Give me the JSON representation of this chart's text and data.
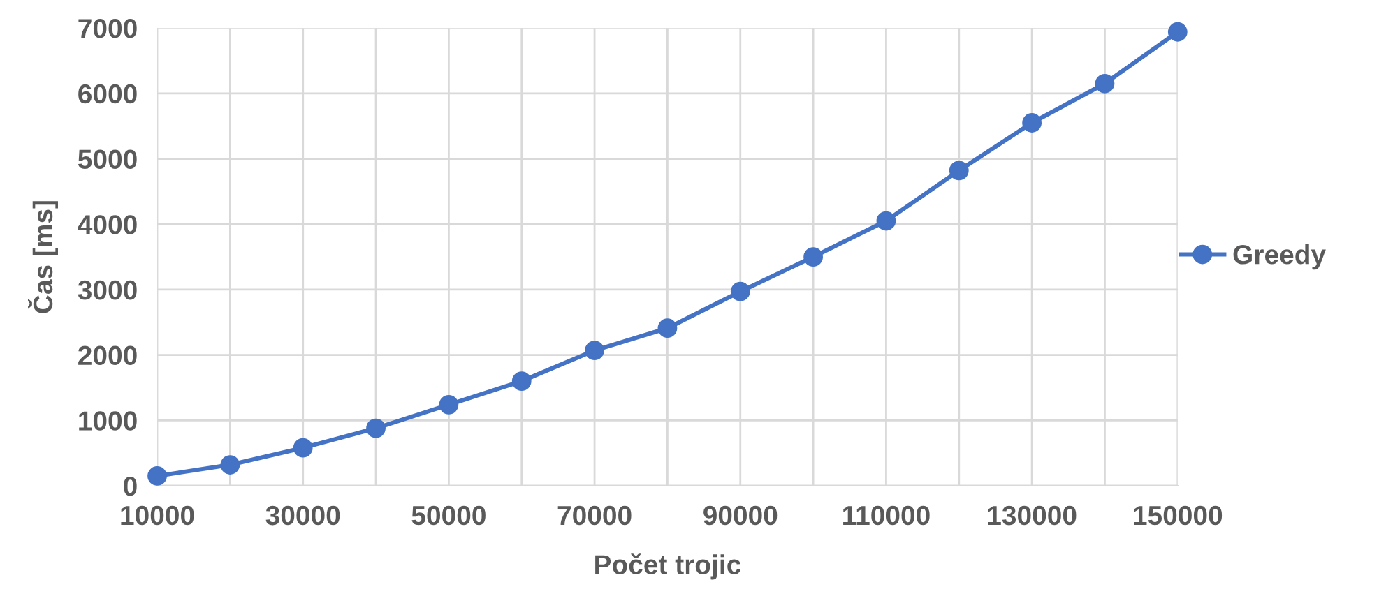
{
  "chart_data": {
    "type": "line",
    "xlabel": "Počet trojic",
    "ylabel": "Čas [ms]",
    "x": [
      10000,
      20000,
      30000,
      40000,
      50000,
      60000,
      70000,
      80000,
      90000,
      100000,
      110000,
      120000,
      130000,
      140000,
      150000
    ],
    "series": [
      {
        "name": "Greedy",
        "color": "#4472c4",
        "values": [
          150,
          320,
          580,
          880,
          1240,
          1600,
          2070,
          2410,
          2970,
          3500,
          4050,
          4820,
          5550,
          6150,
          6940
        ]
      }
    ],
    "xlim": [
      10000,
      150000
    ],
    "xticks": [
      10000,
      {
        "value": 20000,
        "label": null
      },
      30000,
      {
        "value": 40000,
        "label": null
      },
      50000,
      {
        "value": 60000,
        "label": null
      },
      70000,
      {
        "value": 80000,
        "label": null
      },
      90000,
      {
        "value": 100000,
        "label": null
      },
      110000,
      {
        "value": 120000,
        "label": null
      },
      130000,
      {
        "value": 140000,
        "label": null
      },
      150000
    ],
    "ylim": [
      0,
      7000
    ],
    "yticks": [
      0,
      1000,
      2000,
      3000,
      4000,
      5000,
      6000,
      7000
    ],
    "grid": true,
    "legend": "right",
    "marker": "circle",
    "line_style": "solid"
  }
}
